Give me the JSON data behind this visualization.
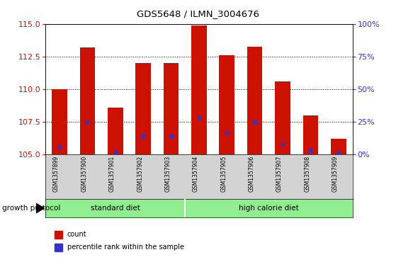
{
  "title": "GDS5648 / ILMN_3004676",
  "samples": [
    "GSM1357899",
    "GSM1357900",
    "GSM1357901",
    "GSM1357902",
    "GSM1357903",
    "GSM1357904",
    "GSM1357905",
    "GSM1357906",
    "GSM1357907",
    "GSM1357908",
    "GSM1357909"
  ],
  "count_values": [
    110.0,
    113.2,
    108.6,
    112.0,
    112.0,
    114.9,
    112.6,
    113.3,
    110.6,
    108.0,
    106.2
  ],
  "percentile_values": [
    6,
    25,
    2,
    14,
    14,
    28,
    17,
    25,
    8,
    3,
    1
  ],
  "ylim_left": [
    105,
    115
  ],
  "ylim_right": [
    0,
    100
  ],
  "yticks_left": [
    105,
    107.5,
    110,
    112.5,
    115
  ],
  "yticks_right": [
    0,
    25,
    50,
    75,
    100
  ],
  "ytick_labels_right": [
    "0%",
    "25%",
    "50%",
    "75%",
    "100%"
  ],
  "bar_color": "#cc1100",
  "blue_color": "#3333cc",
  "background_color": "#ffffff",
  "plot_bg_color": "#ffffff",
  "tick_color_left": "#cc1100",
  "tick_color_right": "#3333cc",
  "bar_width": 0.55,
  "group_color": "#90ee90",
  "xlabel_bg_color": "#d3d3d3",
  "n_standard": 5,
  "n_high_calorie": 6,
  "group_labels": [
    "standard diet",
    "high calorie diet"
  ]
}
